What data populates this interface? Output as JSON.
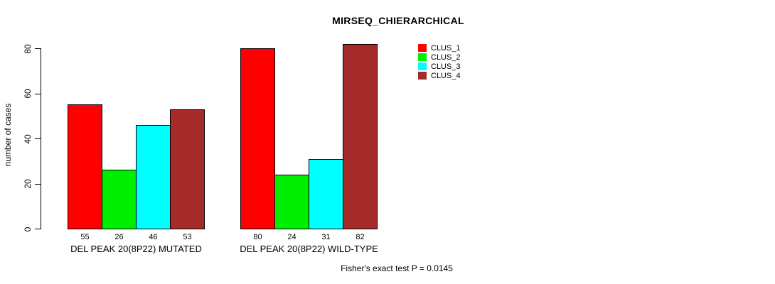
{
  "chart_data": {
    "type": "bar",
    "title": "MIRSEQ_CHIERARCHICAL",
    "xlabel": "",
    "ylabel": "number of cases",
    "ylim": [
      0,
      80
    ],
    "yticks": [
      0,
      20,
      40,
      60,
      80
    ],
    "grid": false,
    "legend_position": "top-right",
    "bar_value_labels": true,
    "categories": [
      "DEL PEAK 20(8P22) MUTATED",
      "DEL PEAK 20(8P22) WILD-TYPE"
    ],
    "series": [
      {
        "name": "CLUS_1",
        "color": "#FF0000",
        "values": [
          55,
          80
        ]
      },
      {
        "name": "CLUS_2",
        "color": "#00EE00",
        "values": [
          26,
          24
        ]
      },
      {
        "name": "CLUS_3",
        "color": "#00FFFF",
        "values": [
          46,
          31
        ]
      },
      {
        "name": "CLUS_4",
        "color": "#A52A2A",
        "values": [
          53,
          82
        ]
      }
    ],
    "annotation": "Fisher's exact test P = 0.0145"
  },
  "colors": {
    "background": "#FFFFFF",
    "text": "#000000",
    "axis": "#000000",
    "bar_border": "#000000"
  }
}
